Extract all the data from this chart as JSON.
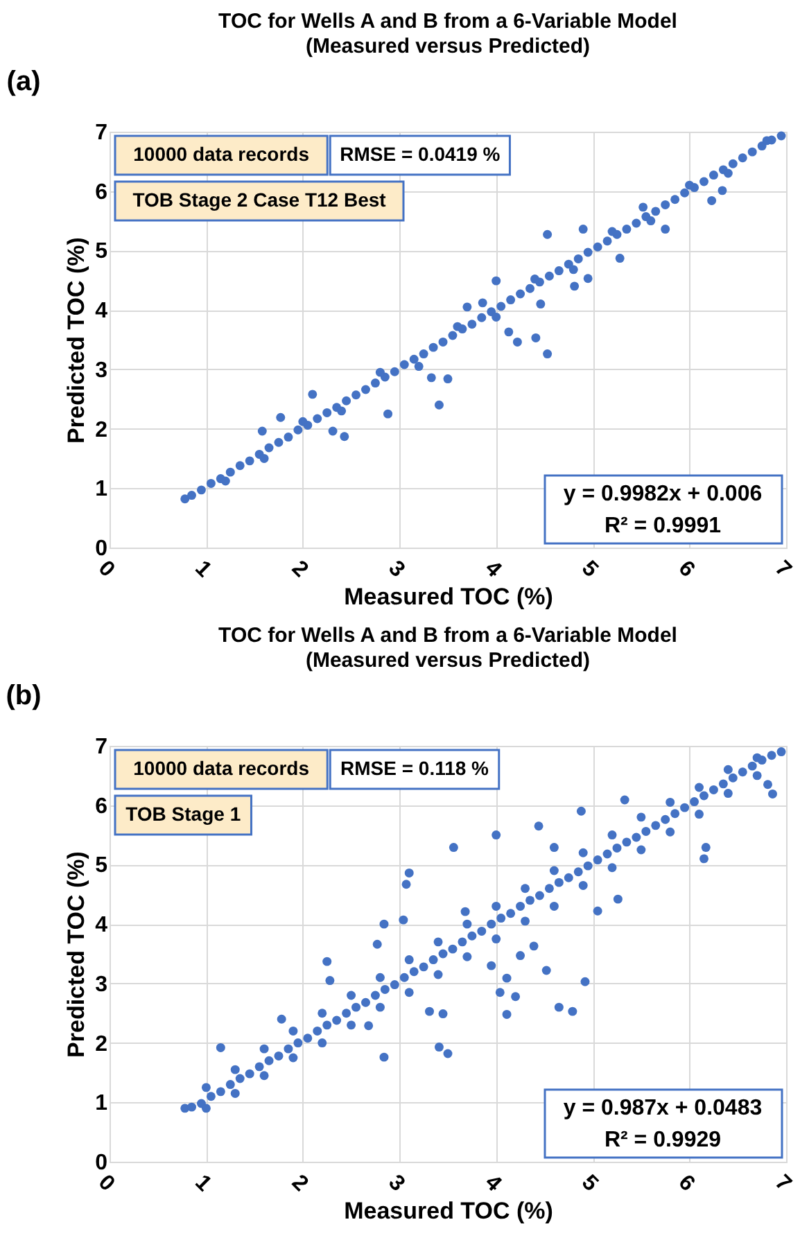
{
  "chart_data": [
    {
      "type": "scatter",
      "title": "TOC for Wells A and B from a 6-Variable Model",
      "subtitle": "(Measured versus Predicted)",
      "xlabel": "Measured TOC (%)",
      "ylabel": "Predicted TOC (%)",
      "annotations": [
        "(a)",
        "10000 data records",
        "RMSE = 0.0419 %",
        "TOB Stage 2 Case T12 Best",
        "y = 0.9982x + 0.006",
        "R² = 0.9991"
      ],
      "xlim": [
        0,
        7
      ],
      "ylim": [
        0,
        7
      ],
      "xticks": [
        0,
        1,
        2,
        3,
        4,
        5,
        6,
        7
      ],
      "yticks": [
        0,
        1,
        2,
        3,
        4,
        5,
        6,
        7
      ],
      "grid": true,
      "marker": "circle",
      "series": [
        {
          "color": "#4472c4",
          "x": [
            0.78,
            0.85,
            0.95,
            1.05,
            1.15,
            1.25,
            1.35,
            1.45,
            1.55,
            1.65,
            1.75,
            1.85,
            1.95,
            2.05,
            2.15,
            2.25,
            2.35,
            2.45,
            2.55,
            2.65,
            2.75,
            2.85,
            2.95,
            3.05,
            3.15,
            3.25,
            3.35,
            3.45,
            3.55,
            3.65,
            3.75,
            3.85,
            3.95,
            4.05,
            4.15,
            4.25,
            4.35,
            4.45,
            4.55,
            4.65,
            4.75,
            4.85,
            4.95,
            5.05,
            5.15,
            5.25,
            5.35,
            5.45,
            5.55,
            5.65,
            5.75,
            5.85,
            5.95,
            6.05,
            6.15,
            6.25,
            6.35,
            6.45,
            6.55,
            6.65,
            6.75,
            6.85,
            6.95,
            1.2,
            1.6,
            2.0,
            2.4,
            2.8,
            3.2,
            3.6,
            4.0,
            4.4,
            4.8,
            5.2,
            5.6,
            6.0,
            6.4,
            6.8,
            4.53,
            4.9,
            4.0,
            4.13,
            4.22,
            4.41,
            4.53,
            4.46,
            4.81,
            4.95,
            3.41,
            3.33,
            3.5,
            2.88,
            2.43,
            2.31,
            2.1,
            1.77,
            1.58,
            5.28,
            5.75,
            6.34,
            6.23,
            5.52,
            3.7,
            3.86
          ],
          "values": [
            0.82,
            0.88,
            0.97,
            1.08,
            1.16,
            1.27,
            1.38,
            1.46,
            1.57,
            1.68,
            1.77,
            1.86,
            1.98,
            2.06,
            2.17,
            2.27,
            2.36,
            2.47,
            2.57,
            2.66,
            2.77,
            2.87,
            2.96,
            3.08,
            3.17,
            3.26,
            3.37,
            3.46,
            3.57,
            3.68,
            3.76,
            3.87,
            3.97,
            4.06,
            4.17,
            4.27,
            4.36,
            4.47,
            4.57,
            4.66,
            4.77,
            4.86,
            4.97,
            5.06,
            5.16,
            5.27,
            5.36,
            5.46,
            5.57,
            5.66,
            5.77,
            5.86,
            5.97,
            6.06,
            6.16,
            6.27,
            6.36,
            6.46,
            6.56,
            6.66,
            6.76,
            6.86,
            6.93,
            1.12,
            1.5,
            2.12,
            2.3,
            2.95,
            3.05,
            3.72,
            3.88,
            4.52,
            4.68,
            5.32,
            5.5,
            6.1,
            6.3,
            6.85,
            5.27,
            5.36,
            4.49,
            3.63,
            3.46,
            3.53,
            3.26,
            4.1,
            4.4,
            4.53,
            2.4,
            2.86,
            2.84,
            2.25,
            1.87,
            1.96,
            2.58,
            2.19,
            1.96,
            4.87,
            5.36,
            6.01,
            5.84,
            5.73,
            4.05,
            4.12
          ]
        }
      ]
    },
    {
      "type": "scatter",
      "title": "TOC for Wells A and B from a 6-Variable Model",
      "subtitle": "(Measured versus Predicted)",
      "xlabel": "Measured TOC (%)",
      "ylabel": "Predicted TOC (%)",
      "annotations": [
        "(b)",
        "10000 data records",
        "RMSE = 0.118 %",
        "TOB Stage 1",
        "y = 0.987x + 0.0483",
        "R² = 0.9929"
      ],
      "xlim": [
        0,
        7
      ],
      "ylim": [
        0,
        7
      ],
      "xticks": [
        0,
        1,
        2,
        3,
        4,
        5,
        6,
        7
      ],
      "yticks": [
        0,
        1,
        2,
        3,
        4,
        5,
        6,
        7
      ],
      "grid": true,
      "marker": "circle",
      "series": [
        {
          "color": "#4472c4",
          "x": [
            0.78,
            0.85,
            0.95,
            1.05,
            1.15,
            1.25,
            1.35,
            1.45,
            1.55,
            1.65,
            1.75,
            1.85,
            1.95,
            2.05,
            2.15,
            2.25,
            2.35,
            2.45,
            2.55,
            2.65,
            2.75,
            2.85,
            2.95,
            3.05,
            3.15,
            3.25,
            3.35,
            3.45,
            3.55,
            3.65,
            3.75,
            3.85,
            3.95,
            4.05,
            4.15,
            4.25,
            4.35,
            4.45,
            4.55,
            4.65,
            4.75,
            4.85,
            4.95,
            5.05,
            5.15,
            5.25,
            5.35,
            5.45,
            5.55,
            5.65,
            5.75,
            5.85,
            5.95,
            6.05,
            6.15,
            6.25,
            6.35,
            6.45,
            6.55,
            6.65,
            6.75,
            6.85,
            6.95,
            1.0,
            1.0,
            1.3,
            1.3,
            1.6,
            1.6,
            1.9,
            1.9,
            2.2,
            2.2,
            2.5,
            2.5,
            2.8,
            2.8,
            3.1,
            3.1,
            3.4,
            3.4,
            3.7,
            3.7,
            4.0,
            4.0,
            4.3,
            4.3,
            4.6,
            4.6,
            4.9,
            4.9,
            5.2,
            5.2,
            5.5,
            5.5,
            5.8,
            5.8,
            6.1,
            6.1,
            6.4,
            6.4,
            6.7,
            6.7,
            3.56,
            4.0,
            4.44,
            5.33,
            4.88,
            3.1,
            3.07,
            2.84,
            3.04,
            2.77,
            2.25,
            2.28,
            3.31,
            3.45,
            3.41,
            3.5,
            2.84,
            3.95,
            4.11,
            4.04,
            4.2,
            4.11,
            4.52,
            4.92,
            4.65,
            4.79,
            4.39,
            4.25,
            5.05,
            5.26,
            6.15,
            6.17,
            6.81,
            6.86,
            1.15,
            1.78,
            2.68,
            3.68,
            4.6
          ],
          "values": [
            0.9,
            0.92,
            0.98,
            1.1,
            1.18,
            1.3,
            1.4,
            1.48,
            1.6,
            1.7,
            1.78,
            1.9,
            2.0,
            2.08,
            2.2,
            2.3,
            2.38,
            2.5,
            2.6,
            2.68,
            2.8,
            2.9,
            2.98,
            3.1,
            3.2,
            3.28,
            3.4,
            3.5,
            3.58,
            3.7,
            3.8,
            3.88,
            4.0,
            4.1,
            4.18,
            4.3,
            4.4,
            4.48,
            4.6,
            4.7,
            4.78,
            4.88,
            4.98,
            5.08,
            5.18,
            5.28,
            5.38,
            5.46,
            5.56,
            5.66,
            5.76,
            5.86,
            5.96,
            6.06,
            6.16,
            6.26,
            6.36,
            6.46,
            6.56,
            6.66,
            6.76,
            6.84,
            6.9,
            1.25,
            0.9,
            1.55,
            1.15,
            1.9,
            1.45,
            2.2,
            1.75,
            2.5,
            2.0,
            2.8,
            2.3,
            3.1,
            2.6,
            3.4,
            2.85,
            3.7,
            3.15,
            4.0,
            3.45,
            4.3,
            3.75,
            4.6,
            4.05,
            4.9,
            4.3,
            5.2,
            4.65,
            5.5,
            4.95,
            5.8,
            5.25,
            6.05,
            5.55,
            6.3,
            5.85,
            6.6,
            6.2,
            6.8,
            6.5,
            5.29,
            5.5,
            5.65,
            6.09,
            5.9,
            4.86,
            4.67,
            4.0,
            4.07,
            3.66,
            3.37,
            3.05,
            2.53,
            2.49,
            1.93,
            1.82,
            1.76,
            3.3,
            3.09,
            2.85,
            2.78,
            2.48,
            3.22,
            3.03,
            2.6,
            2.53,
            3.63,
            3.47,
            4.22,
            4.42,
            5.1,
            5.29,
            6.35,
            6.19,
            1.92,
            2.4,
            2.29,
            4.21,
            5.29
          ]
        }
      ]
    }
  ]
}
